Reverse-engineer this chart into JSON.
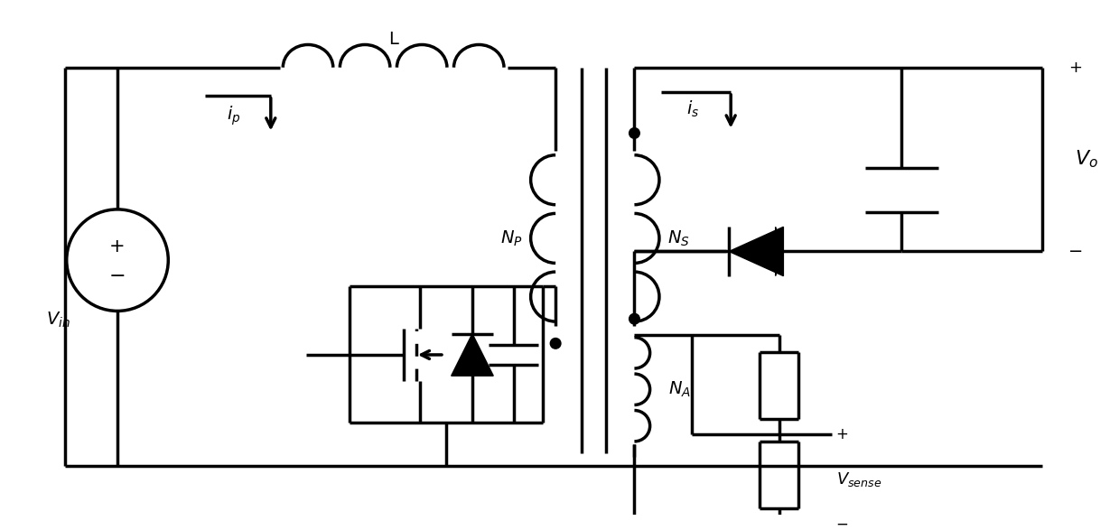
{
  "bg": "#ffffff",
  "lc": "#000000",
  "lw": 2.5,
  "fig_w": 12.39,
  "fig_h": 5.87,
  "labels": {
    "Vin": "$V_{in}$",
    "L": "L",
    "ip": "$i_p$",
    "NP": "$N_P$",
    "NS": "$N_S$",
    "NA": "$N_A$",
    "is_label": "$i_s$",
    "Vo": "$V_o$",
    "Vsense": "$V_{sense}$",
    "plus": "+",
    "minus": "−"
  }
}
